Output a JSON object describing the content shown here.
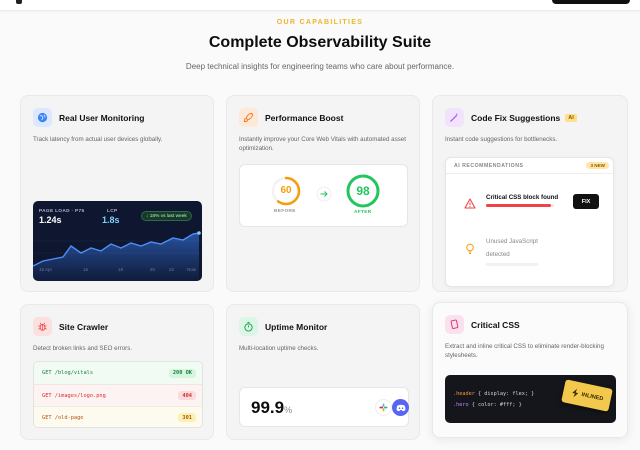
{
  "header": {
    "eyebrow": "OUR CAPABILITIES",
    "title": "Complete Observability Suite",
    "subtitle": "Deep technical insights for engineering teams who care about performance."
  },
  "cards": {
    "rum": {
      "title": "Real User Monitoring",
      "description": "Track latency from actual user devices globally.",
      "page_load_label": "PAGE LOAD · P75",
      "page_load_value": "1.24s",
      "lcp_label": "LCP",
      "lcp_value": "1.8s",
      "trend": "↓ 18% vs last week",
      "ticks": [
        "15 Apr",
        "16",
        "18",
        "20",
        "22",
        "Now"
      ],
      "icon": "globe-icon",
      "accent": "#3b82f6"
    },
    "perf": {
      "title": "Performance Boost",
      "description": "Instantly improve your Core Web Vitals with automated asset optimization.",
      "before_score": 60,
      "after_score": 98,
      "before_label": "BEFORE",
      "after_label": "AFTER",
      "icon": "rocket-icon",
      "before_color": "#f59e0b",
      "after_color": "#22c55e"
    },
    "codefix": {
      "title": "Code Fix Suggestions",
      "badge": "AI",
      "description": "Instant code suggestions for bottlenecks.",
      "panel_label": "AI RECOMMENDATIONS",
      "new_count": "3 NEW",
      "item1": "Critical CSS block found",
      "item1_progress": 0.95,
      "fix_label": "FIX",
      "item2_line1": "Unused JavaScript",
      "item2_line2": "detected",
      "icon": "magic-wand-icon"
    },
    "crawler": {
      "title": "Site Crawler",
      "description": "Detect broken links and SEO errors.",
      "rows": [
        {
          "path": "GET /blog/vitals",
          "status": "200 OK"
        },
        {
          "path": "GET /images/logo.png",
          "status": "404"
        },
        {
          "path": "GET /old-page",
          "status": "301"
        }
      ],
      "icon": "bug-icon"
    },
    "uptime": {
      "title": "Uptime Monitor",
      "description": "Multi-location uptime checks.",
      "value": "99.9",
      "unit": "%",
      "icon": "stopwatch-icon"
    },
    "critical": {
      "title": "Critical CSS",
      "description_l1": "Extract and inline critical CSS to eliminate render-blocking",
      "description_l2": "stylesheets.",
      "code_line1_sel": ".header",
      "code_line1_body": " { display: flex; }",
      "code_line2_sel": ".hero",
      "code_line2_body": " { color: #fff; }",
      "inlined_label": "INLINED",
      "icon": "css-file-icon"
    }
  }
}
